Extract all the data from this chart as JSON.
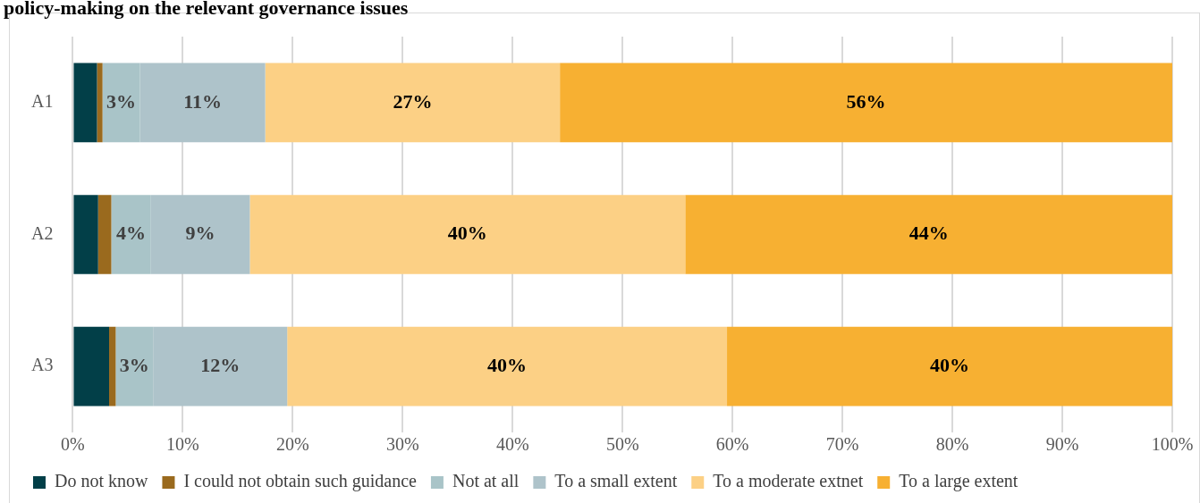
{
  "chart_data": {
    "type": "bar",
    "orientation": "horizontal",
    "stacked": true,
    "title": "policy-making on the relevant governance issues",
    "categories": [
      "A1",
      "A2",
      "A3"
    ],
    "series": [
      {
        "name": "Do not know",
        "color": "#023f48",
        "values": [
          2.2,
          2.3,
          3.3
        ]
      },
      {
        "name": "I could not obtain such guidance",
        "color": "#9a6a1e",
        "values": [
          0.5,
          1.2,
          0.6
        ]
      },
      {
        "name": "Not at all",
        "color": "#a9c4c8",
        "values": [
          3.4,
          3.6,
          3.4
        ],
        "value_labels": [
          "3%",
          "4%",
          "3%"
        ]
      },
      {
        "name": "To a small extent",
        "color": "#aec3ca",
        "values": [
          11.4,
          9.0,
          12.2
        ],
        "value_labels": [
          "11%",
          "9%",
          "12%"
        ]
      },
      {
        "name": "To a moderate extnet",
        "color": "#fcd085",
        "values": [
          26.8,
          39.6,
          40.0
        ],
        "value_labels": [
          "27%",
          "40%",
          "40%"
        ]
      },
      {
        "name": "To a large extent",
        "color": "#f7b032",
        "values": [
          55.7,
          44.3,
          40.5
        ],
        "value_labels": [
          "56%",
          "44%",
          "40%"
        ]
      }
    ],
    "xlim": [
      0,
      100
    ],
    "xticks": [
      {
        "value": 0,
        "label": "0%"
      },
      {
        "value": 10,
        "label": "10%"
      },
      {
        "value": 20,
        "label": "20%"
      },
      {
        "value": 30,
        "label": "30%"
      },
      {
        "value": 40,
        "label": "40%"
      },
      {
        "value": 50,
        "label": "50%"
      },
      {
        "value": 60,
        "label": "60%"
      },
      {
        "value": 70,
        "label": "70%"
      },
      {
        "value": 80,
        "label": "80%"
      },
      {
        "value": 90,
        "label": "90%"
      },
      {
        "value": 100,
        "label": "100%"
      }
    ],
    "grid": "x",
    "legend": "bottom"
  }
}
